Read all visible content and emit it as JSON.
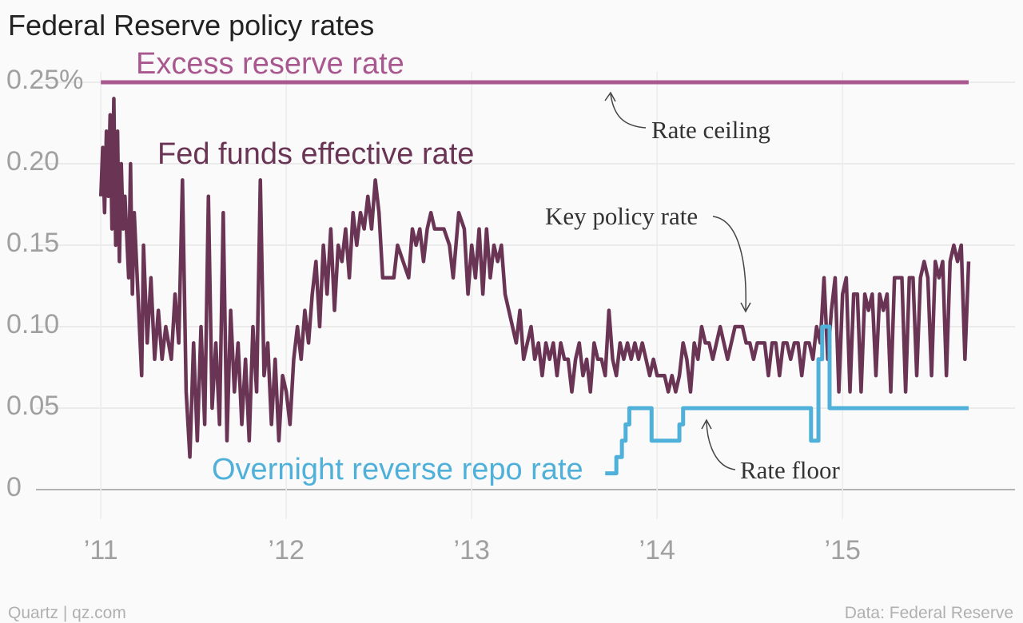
{
  "chart_data": {
    "type": "line",
    "title": "Federal Reserve policy rates",
    "source": "Data: Federal Reserve",
    "credit": "Quartz | qz.com",
    "annotations": [
      "Rate ceiling",
      "Key policy rate",
      "Rate floor"
    ],
    "xlim": [
      2010.65,
      2015.93
    ],
    "xticks": [
      {
        "value": 2011,
        "label": "’11"
      },
      {
        "value": 2012,
        "label": "’12"
      },
      {
        "value": 2013,
        "label": "’13"
      },
      {
        "value": 2014,
        "label": "’14"
      },
      {
        "value": 2015,
        "label": "’15"
      }
    ],
    "ylim": [
      0,
      0.25
    ],
    "yticks": [
      0,
      0.05,
      {
        "value": 0.1,
        "label": "0.10"
      },
      0.15,
      {
        "value": 0.2,
        "label": "0.20"
      },
      {
        "value": 0.25,
        "label": "0.25%"
      }
    ],
    "grid": true,
    "series": [
      {
        "name": "Excess reserve rate",
        "color": "#a9588f",
        "x": [
          2011,
          2015.68
        ],
        "values": [
          0.25,
          0.25
        ]
      },
      {
        "name": "Fed funds effective rate",
        "color": "#6a3455",
        "x": [
          2011,
          2011.01,
          2011.02,
          2011.03,
          2011.04,
          2011.05,
          2011.06,
          2011.07,
          2011.08,
          2011.09,
          2011.1,
          2011.11,
          2011.12,
          2011.13,
          2011.15,
          2011.16,
          2011.17,
          2011.18,
          2011.2,
          2011.22,
          2011.23,
          2011.25,
          2011.27,
          2011.29,
          2011.31,
          2011.33,
          2011.35,
          2011.38,
          2011.4,
          2011.42,
          2011.44,
          2011.46,
          2011.48,
          2011.5,
          2011.52,
          2011.54,
          2011.56,
          2011.58,
          2011.6,
          2011.62,
          2011.64,
          2011.66,
          2011.68,
          2011.7,
          2011.72,
          2011.74,
          2011.76,
          2011.78,
          2011.8,
          2011.82,
          2011.84,
          2011.86,
          2011.88,
          2011.9,
          2011.92,
          2011.94,
          2011.96,
          2011.98,
          2012.0,
          2012.02,
          2012.04,
          2012.06,
          2012.08,
          2012.1,
          2012.12,
          2012.14,
          2012.16,
          2012.18,
          2012.2,
          2012.22,
          2012.24,
          2012.26,
          2012.28,
          2012.3,
          2012.32,
          2012.34,
          2012.36,
          2012.38,
          2012.4,
          2012.42,
          2012.44,
          2012.46,
          2012.48,
          2012.5,
          2012.52,
          2012.55,
          2012.58,
          2012.6,
          2012.63,
          2012.66,
          2012.68,
          2012.7,
          2012.72,
          2012.74,
          2012.76,
          2012.78,
          2012.8,
          2012.85,
          2012.88,
          2012.9,
          2012.93,
          2012.96,
          2012.98,
          2013.0,
          2013.02,
          2013.04,
          2013.06,
          2013.08,
          2013.1,
          2013.12,
          2013.14,
          2013.16,
          2013.18,
          2013.2,
          2013.22,
          2013.24,
          2013.26,
          2013.28,
          2013.3,
          2013.32,
          2013.34,
          2013.36,
          2013.38,
          2013.4,
          2013.42,
          2013.44,
          2013.46,
          2013.48,
          2013.5,
          2013.52,
          2013.54,
          2013.56,
          2013.58,
          2013.6,
          2013.62,
          2013.64,
          2013.66,
          2013.68,
          2013.7,
          2013.72,
          2013.74,
          2013.76,
          2013.78,
          2013.8,
          2013.82,
          2013.84,
          2013.86,
          2013.88,
          2013.9,
          2013.92,
          2013.94,
          2013.96,
          2013.98,
          2014.0,
          2014.02,
          2014.04,
          2014.06,
          2014.08,
          2014.1,
          2014.12,
          2014.14,
          2014.16,
          2014.18,
          2014.2,
          2014.22,
          2014.24,
          2014.26,
          2014.28,
          2014.3,
          2014.32,
          2014.34,
          2014.36,
          2014.38,
          2014.4,
          2014.42,
          2014.44,
          2014.46,
          2014.48,
          2014.5,
          2014.52,
          2014.54,
          2014.56,
          2014.58,
          2014.6,
          2014.62,
          2014.64,
          2014.66,
          2014.68,
          2014.7,
          2014.72,
          2014.74,
          2014.76,
          2014.78,
          2014.8,
          2014.82,
          2014.84,
          2014.86,
          2014.88,
          2014.9,
          2014.92,
          2014.94,
          2014.96,
          2014.98,
          2015.0,
          2015.02,
          2015.04,
          2015.06,
          2015.08,
          2015.1,
          2015.12,
          2015.14,
          2015.16,
          2015.18,
          2015.2,
          2015.22,
          2015.24,
          2015.26,
          2015.28,
          2015.3,
          2015.32,
          2015.34,
          2015.36,
          2015.38,
          2015.4,
          2015.42,
          2015.44,
          2015.46,
          2015.48,
          2015.5,
          2015.52,
          2015.54,
          2015.56,
          2015.58,
          2015.6,
          2015.62,
          2015.64,
          2015.66,
          2015.68
        ],
        "values": [
          0.18,
          0.21,
          0.17,
          0.22,
          0.18,
          0.23,
          0.16,
          0.24,
          0.15,
          0.22,
          0.14,
          0.2,
          0.16,
          0.18,
          0.13,
          0.2,
          0.12,
          0.17,
          0.12,
          0.07,
          0.15,
          0.09,
          0.13,
          0.08,
          0.11,
          0.08,
          0.1,
          0.08,
          0.12,
          0.09,
          0.19,
          0.06,
          0.02,
          0.09,
          0.03,
          0.1,
          0.04,
          0.18,
          0.05,
          0.09,
          0.04,
          0.17,
          0.03,
          0.11,
          0.06,
          0.09,
          0.04,
          0.08,
          0.03,
          0.1,
          0.06,
          0.19,
          0.07,
          0.09,
          0.04,
          0.08,
          0.03,
          0.07,
          0.06,
          0.04,
          0.08,
          0.1,
          0.08,
          0.11,
          0.09,
          0.12,
          0.14,
          0.1,
          0.15,
          0.12,
          0.16,
          0.11,
          0.15,
          0.14,
          0.16,
          0.13,
          0.17,
          0.15,
          0.17,
          0.16,
          0.18,
          0.16,
          0.19,
          0.17,
          0.13,
          0.13,
          0.13,
          0.15,
          0.14,
          0.13,
          0.16,
          0.15,
          0.16,
          0.14,
          0.16,
          0.17,
          0.16,
          0.16,
          0.15,
          0.13,
          0.17,
          0.16,
          0.12,
          0.15,
          0.13,
          0.16,
          0.12,
          0.16,
          0.13,
          0.15,
          0.14,
          0.15,
          0.12,
          0.11,
          0.1,
          0.09,
          0.11,
          0.08,
          0.09,
          0.1,
          0.08,
          0.09,
          0.07,
          0.09,
          0.08,
          0.09,
          0.07,
          0.09,
          0.08,
          0.08,
          0.06,
          0.08,
          0.09,
          0.07,
          0.08,
          0.06,
          0.09,
          0.08,
          0.08,
          0.07,
          0.11,
          0.08,
          0.07,
          0.09,
          0.08,
          0.09,
          0.08,
          0.09,
          0.08,
          0.09,
          0.08,
          0.07,
          0.08,
          0.07,
          0.07,
          0.07,
          0.06,
          0.07,
          0.06,
          0.07,
          0.09,
          0.08,
          0.06,
          0.09,
          0.08,
          0.1,
          0.09,
          0.09,
          0.08,
          0.09,
          0.1,
          0.09,
          0.08,
          0.09,
          0.1,
          0.1,
          0.1,
          0.09,
          0.09,
          0.08,
          0.09,
          0.09,
          0.09,
          0.07,
          0.09,
          0.09,
          0.07,
          0.09,
          0.09,
          0.08,
          0.09,
          0.09,
          0.07,
          0.09,
          0.09,
          0.08,
          0.1,
          0.09,
          0.13,
          0.08,
          0.11,
          0.13,
          0.06,
          0.12,
          0.13,
          0.06,
          0.12,
          0.12,
          0.06,
          0.12,
          0.11,
          0.12,
          0.07,
          0.12,
          0.11,
          0.12,
          0.06,
          0.13,
          0.13,
          0.13,
          0.06,
          0.13,
          0.13,
          0.07,
          0.13,
          0.14,
          0.13,
          0.07,
          0.14,
          0.13,
          0.14,
          0.07,
          0.14,
          0.15,
          0.14,
          0.15,
          0.08,
          0.14
        ]
      },
      {
        "name": "Overnight reverse repo rate",
        "color": "#4fb0d9",
        "x": [
          2013.72,
          2013.78,
          2013.78,
          2013.81,
          2013.81,
          2013.83,
          2013.83,
          2013.85,
          2013.85,
          2013.97,
          2013.97,
          2014.12,
          2014.12,
          2014.14,
          2014.14,
          2014.83,
          2014.83,
          2014.87,
          2014.87,
          2014.89,
          2014.89,
          2014.93,
          2014.93,
          2015.68
        ],
        "values": [
          0.01,
          0.01,
          0.02,
          0.02,
          0.03,
          0.03,
          0.04,
          0.04,
          0.05,
          0.05,
          0.03,
          0.03,
          0.04,
          0.04,
          0.05,
          0.05,
          0.03,
          0.03,
          0.08,
          0.08,
          0.1,
          0.1,
          0.05,
          0.05
        ]
      }
    ]
  }
}
